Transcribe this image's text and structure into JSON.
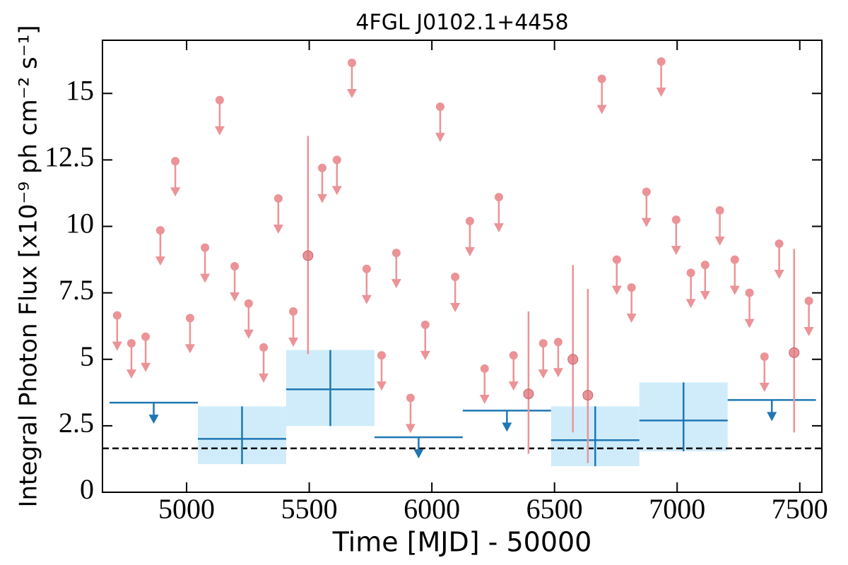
{
  "chart_data": {
    "type": "errorbar",
    "title": "4FGL J0102.1+4458",
    "x_label": "Time [MJD] - 50000",
    "y_label": "Integral Photon Flux [x10⁻⁹ ph cm⁻² s⁻¹]",
    "xlim": [
      4657,
      7590
    ],
    "ylim": [
      0,
      17
    ],
    "xticks": [
      5000,
      5500,
      6000,
      6500,
      7000,
      7500
    ],
    "yticks": [
      0,
      2.5,
      5,
      7.5,
      10,
      12.5,
      15
    ],
    "monthly_upper_limits": {
      "color": "#eb9397",
      "x": [
        4717,
        4775,
        4833,
        4893,
        4954,
        5014,
        5075,
        5135,
        5196,
        5253,
        5314,
        5374,
        5435,
        5553,
        5613,
        5674,
        5734,
        5795,
        5855,
        5913,
        5973,
        6034,
        6095,
        6155,
        6215,
        6273,
        6333,
        6454,
        6515,
        6693,
        6754,
        6814,
        6875,
        6935,
        6996,
        7056,
        7114,
        7174,
        7235,
        7295,
        7356,
        7416,
        7537
      ],
      "values": [
        6.65,
        5.6,
        5.85,
        9.85,
        12.45,
        6.55,
        9.2,
        14.75,
        8.5,
        7.1,
        5.45,
        11.05,
        6.8,
        12.2,
        12.5,
        16.15,
        8.4,
        5.15,
        9.0,
        3.55,
        6.3,
        14.5,
        8.1,
        10.2,
        4.65,
        11.1,
        5.15,
        5.6,
        5.65,
        15.55,
        8.75,
        7.7,
        11.3,
        16.2,
        10.25,
        8.25,
        8.55,
        10.6,
        8.75,
        7.5,
        5.1,
        9.35,
        7.2
      ]
    },
    "monthly_detections": {
      "color": "#e0797e",
      "x": [
        5495,
        6394,
        6575,
        6636,
        7477
      ],
      "values": [
        8.9,
        3.7,
        5.0,
        3.65,
        5.25
      ],
      "low": [
        5.2,
        1.45,
        2.25,
        1.1,
        2.25
      ],
      "high": [
        13.4,
        6.8,
        8.55,
        7.65,
        9.15
      ]
    },
    "yearly_upper_limits": {
      "color": "#1f77b4",
      "x_start": [
        4686,
        5766,
        6126,
        7206
      ],
      "x_end": [
        5046,
        6126,
        6486,
        7566
      ],
      "values": [
        3.37,
        2.07,
        3.07,
        3.47
      ]
    },
    "yearly_detections": {
      "color": "#1f77b4",
      "fill": "#d0ecfb",
      "x_start": [
        5046,
        5406,
        6486,
        6846
      ],
      "x_end": [
        5406,
        5766,
        6846,
        7206
      ],
      "values": [
        2.01,
        3.87,
        1.96,
        2.7
      ],
      "low": [
        1.06,
        2.49,
        0.98,
        1.54
      ],
      "high": [
        3.23,
        5.35,
        3.23,
        4.13
      ]
    },
    "reference_line": {
      "value": 1.65,
      "color": "#000000",
      "dashed": true
    }
  }
}
